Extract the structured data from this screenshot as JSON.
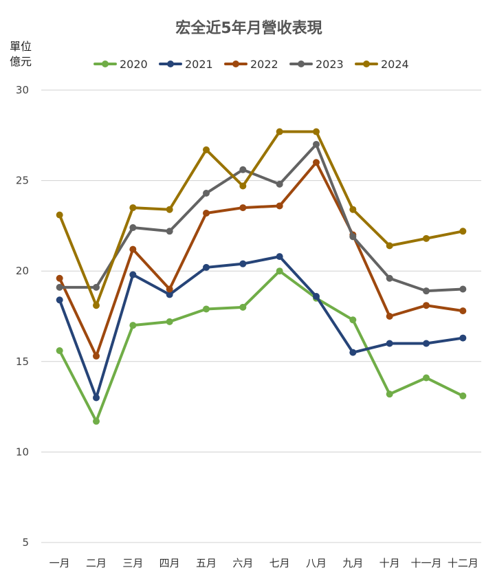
{
  "chart_data": {
    "type": "line",
    "title": "宏全近5年月營收表現",
    "unit_label": [
      "單位",
      "億元"
    ],
    "categories": [
      "一月",
      "二月",
      "三月",
      "四月",
      "五月",
      "六月",
      "七月",
      "八月",
      "九月",
      "十月",
      "十一月",
      "十二月"
    ],
    "ylim": [
      5,
      30
    ],
    "yticks": [
      5,
      10,
      15,
      20,
      25,
      30
    ],
    "grid": true,
    "legend_position": "top",
    "series": [
      {
        "name": "2020",
        "color": "#70ad47",
        "values": [
          15.6,
          11.7,
          17.0,
          17.2,
          17.9,
          18.0,
          20.0,
          18.5,
          17.3,
          13.2,
          14.1,
          13.1
        ]
      },
      {
        "name": "2021",
        "color": "#264478",
        "values": [
          18.4,
          13.0,
          19.8,
          18.7,
          20.2,
          20.4,
          20.8,
          18.6,
          15.5,
          16.0,
          16.0,
          16.3
        ]
      },
      {
        "name": "2022",
        "color": "#9e480e",
        "values": [
          19.6,
          15.3,
          21.2,
          19.0,
          23.2,
          23.5,
          23.6,
          26.0,
          22.0,
          17.5,
          18.1,
          17.8
        ]
      },
      {
        "name": "2023",
        "color": "#636363",
        "values": [
          19.1,
          19.1,
          22.4,
          22.2,
          24.3,
          25.6,
          24.8,
          27.0,
          21.9,
          19.6,
          18.9,
          19.0
        ]
      },
      {
        "name": "2024",
        "color": "#997300",
        "values": [
          23.1,
          18.1,
          23.5,
          23.4,
          26.7,
          24.7,
          27.7,
          27.7,
          23.4,
          21.4,
          21.8,
          22.2
        ]
      }
    ]
  }
}
